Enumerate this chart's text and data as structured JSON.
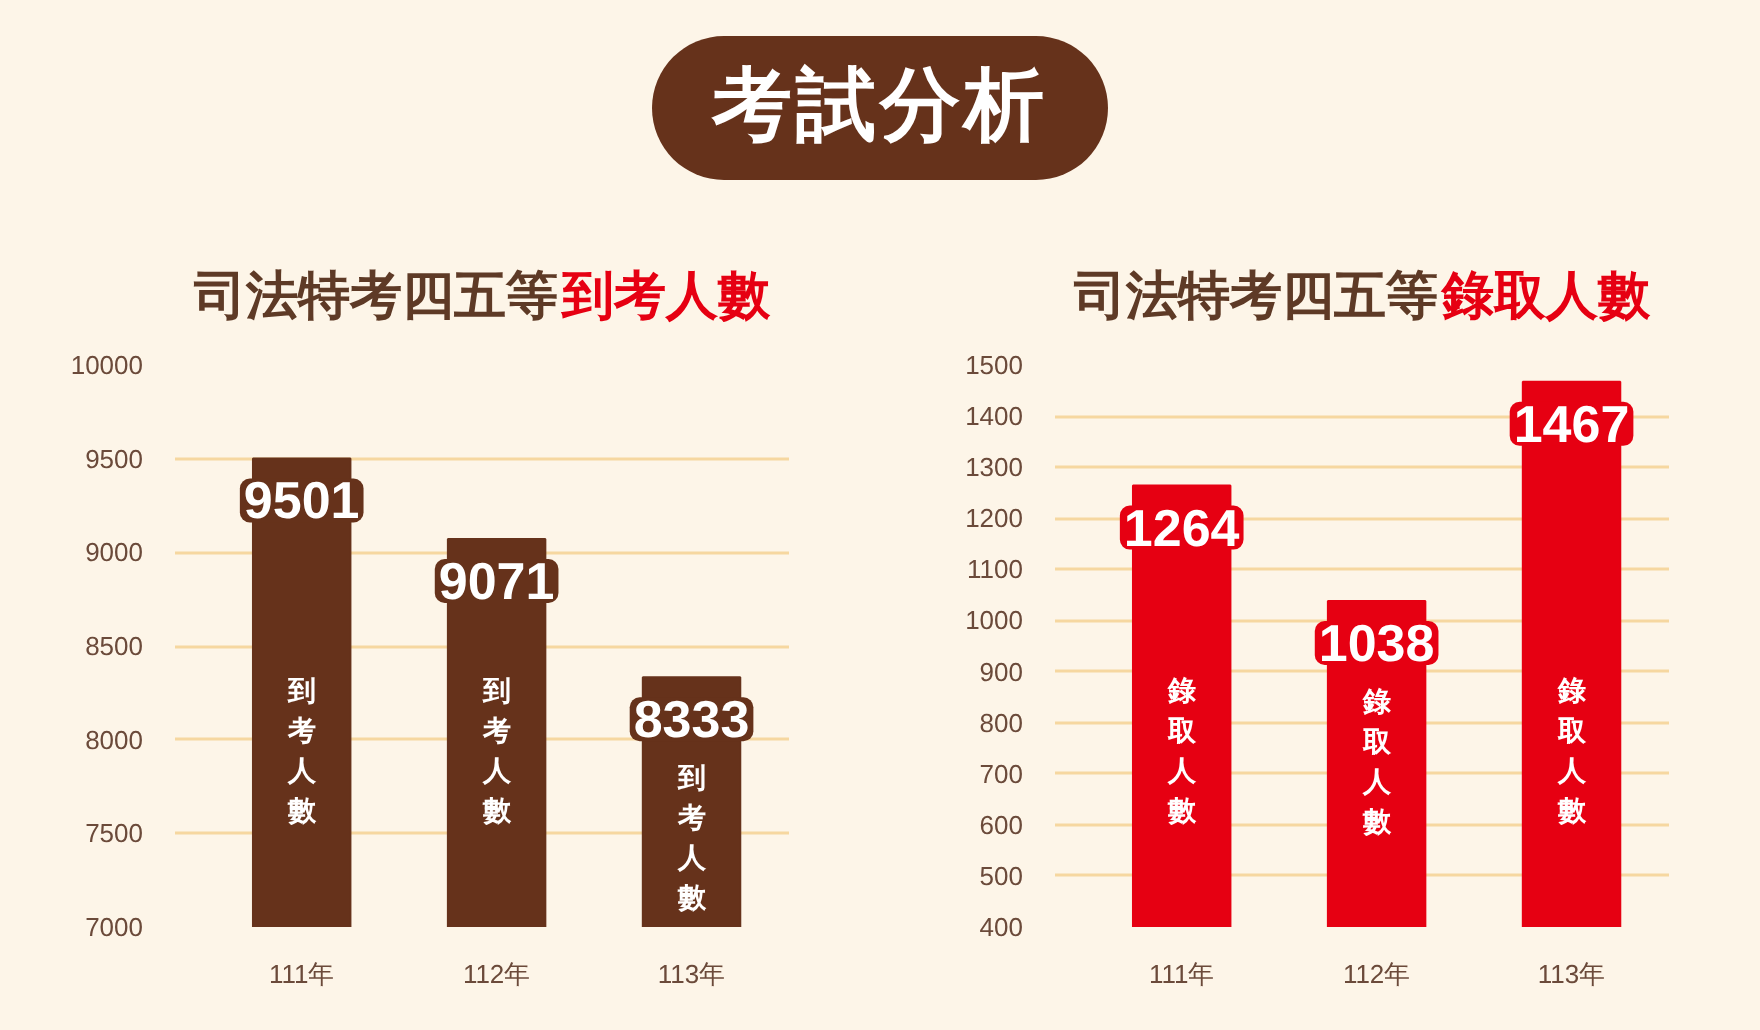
{
  "chart_data": [
    {
      "type": "other",
      "title": "考試分析"
    },
    {
      "type": "bar",
      "title": "司法特考四五等到考人數",
      "categories": [
        "111年",
        "112年",
        "113年"
      ],
      "series": [
        {
          "name": "到考人數",
          "color": "#66321b",
          "values": [
            9501,
            9071,
            8333
          ]
        }
      ],
      "ylim": [
        7000,
        10000
      ],
      "yticks": [
        7000,
        7500,
        8000,
        8500,
        9000,
        9500,
        10000
      ],
      "grid": "y",
      "data_labels": true
    },
    {
      "type": "bar",
      "title": "司法特考四五等錄取人數",
      "categories": [
        "111年",
        "112年",
        "113年"
      ],
      "series": [
        {
          "name": "錄取人數",
          "color": "#e60012",
          "values": [
            1264,
            1038,
            1467
          ]
        }
      ],
      "ylim": [
        400,
        1500
      ],
      "yticks": [
        400,
        500,
        600,
        700,
        800,
        900,
        1000,
        1100,
        1200,
        1300,
        1400,
        1500
      ],
      "grid": "y",
      "data_labels": true
    }
  ]
}
